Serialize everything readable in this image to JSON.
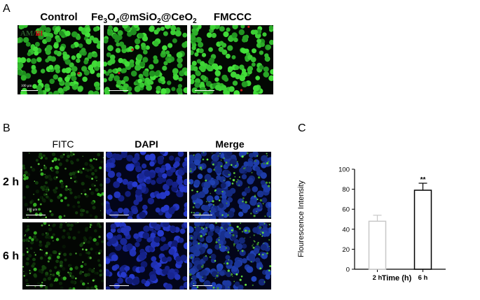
{
  "panel_a": {
    "letter": "A",
    "columns": [
      {
        "title_parts": [
          "Control"
        ]
      },
      {
        "title_parts": [
          "Fe",
          "3",
          "O",
          "4",
          "@mSiO",
          "2",
          "@CeO",
          "2"
        ]
      },
      {
        "title_parts": [
          "FMCCC"
        ]
      }
    ],
    "legend_am": "AM",
    "legend_slash": "/",
    "legend_pi": "PI",
    "scale_label": "100 μm"
  },
  "panel_b": {
    "letter": "B",
    "columns": [
      "FITC",
      "DAPI",
      "Merge"
    ],
    "rows": [
      "2 h",
      "6 h"
    ],
    "scale_label": "100 μm"
  },
  "colors": {
    "am_green": "#22c422",
    "pi_red": "#d01818",
    "dapi_blue": "#1b2fd6"
  },
  "chart_data": {
    "letter": "C",
    "type": "bar",
    "categories": [
      "2 h",
      "6 h"
    ],
    "values": [
      48,
      79
    ],
    "errors": [
      6,
      7
    ],
    "bar_colors": [
      "#c8c8c8",
      "#000000"
    ],
    "bar_fill": "#ffffff",
    "annotations": [
      "",
      "**"
    ],
    "xlabel": "Time (h)",
    "ylabel": "Flourescence Intensity",
    "ylim": [
      0,
      100
    ],
    "yticks": [
      "0",
      "20",
      "40",
      "60",
      "80",
      "100"
    ]
  }
}
